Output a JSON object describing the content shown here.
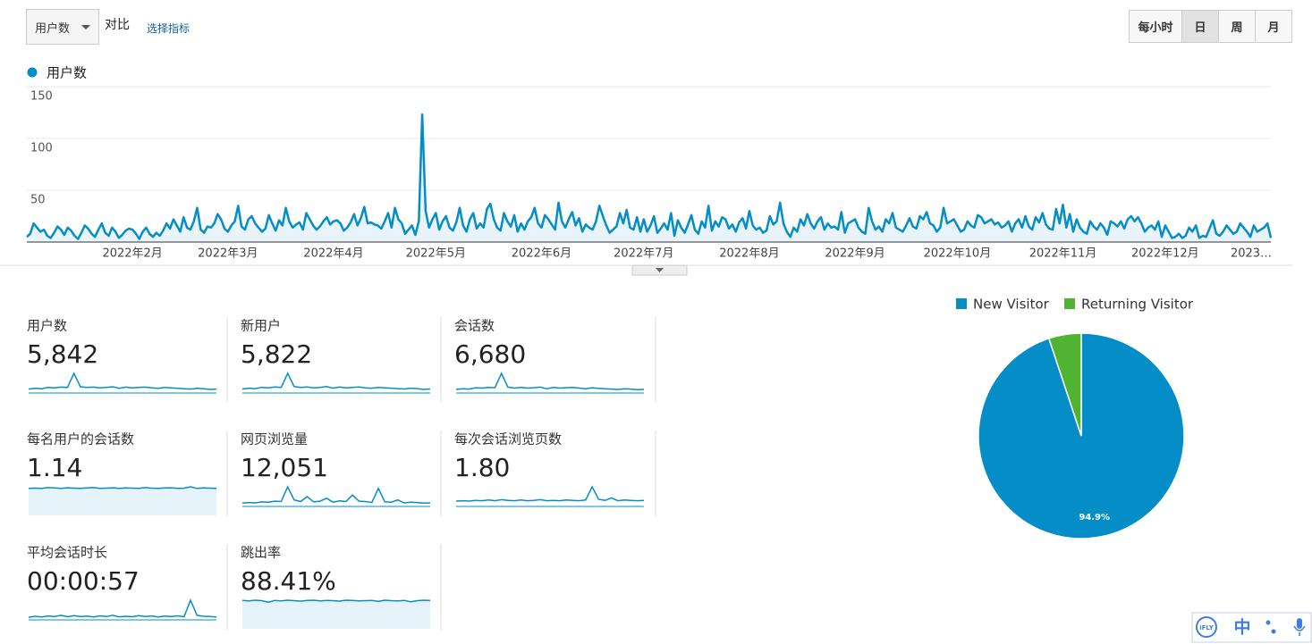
{
  "controls": {
    "metric": "用户数",
    "compare": "对比",
    "select_metric": "选择指标",
    "periods": [
      "每小时",
      "日",
      "周",
      "月"
    ],
    "active_period": 1
  },
  "chart_data": [
    {
      "type": "line",
      "categories": [
        null,
        null,
        null,
        null,
        null,
        null,
        null,
        null,
        null,
        null,
        null,
        null,
        null,
        null,
        null,
        null,
        null,
        null,
        null,
        null,
        null,
        null,
        null,
        null,
        null,
        null,
        null,
        null,
        null,
        null,
        null,
        "2022年2月",
        null,
        null,
        null,
        null,
        null,
        null,
        null,
        null,
        null,
        null,
        null,
        null,
        null,
        null,
        null,
        null,
        null,
        null,
        null,
        null,
        null,
        null,
        null,
        null,
        null,
        null,
        null,
        "2022年3月",
        null,
        null,
        null,
        null,
        null,
        null,
        null,
        null,
        null,
        null,
        null,
        null,
        null,
        null,
        null,
        null,
        null,
        null,
        null,
        null,
        null,
        null,
        null,
        null,
        null,
        null,
        null,
        null,
        null,
        null,
        "2022年4月",
        null,
        null,
        null,
        null,
        null,
        null,
        null,
        null,
        null,
        null,
        null,
        null,
        null,
        null,
        null,
        null,
        null,
        null,
        null,
        null,
        null,
        null,
        null,
        null,
        null,
        null,
        null,
        null,
        null,
        "2022年5月",
        null,
        null,
        null,
        null,
        null,
        null,
        null,
        null,
        null,
        null,
        null,
        null,
        null,
        null,
        null,
        null,
        null,
        null,
        null,
        null,
        null,
        null,
        null,
        null,
        null,
        null,
        null,
        null,
        null,
        null,
        "2022年6月",
        null,
        null,
        null,
        null,
        null,
        null,
        null,
        null,
        null,
        null,
        null,
        null,
        null,
        null,
        null,
        null,
        null,
        null,
        null,
        null,
        null,
        null,
        null,
        null,
        null,
        null,
        null,
        null,
        null,
        "2022年7月",
        null,
        null,
        null,
        null,
        null,
        null,
        null,
        null,
        null,
        null,
        null,
        null,
        null,
        null,
        null,
        null,
        null,
        null,
        null,
        null,
        null,
        null,
        null,
        null,
        null,
        null,
        null,
        null,
        null,
        null,
        "2022年8月",
        null,
        null,
        null,
        null,
        null,
        null,
        null,
        null,
        null,
        null,
        null,
        null,
        null,
        null,
        null,
        null,
        null,
        null,
        null,
        null,
        null,
        null,
        null,
        null,
        null,
        null,
        null,
        null,
        null,
        null,
        "2022年9月",
        null,
        null,
        null,
        null,
        null,
        null,
        null,
        null,
        null,
        null,
        null,
        null,
        null,
        null,
        null,
        null,
        null,
        null,
        null,
        null,
        null,
        null,
        null,
        null,
        null,
        null,
        null,
        null,
        null,
        "2022年10月",
        null,
        null,
        null,
        null,
        null,
        null,
        null,
        null,
        null,
        null,
        null,
        null,
        null,
        null,
        null,
        null,
        null,
        null,
        null,
        null,
        null,
        null,
        null,
        null,
        null,
        null,
        null,
        null,
        null,
        null,
        "2022年11月",
        null,
        null,
        null,
        null,
        null,
        null,
        null,
        null,
        null,
        null,
        null,
        null,
        null,
        null,
        null,
        null,
        null,
        null,
        null,
        null,
        null,
        null,
        null,
        null,
        null,
        null,
        null,
        null,
        null,
        "2022年12月",
        null,
        null,
        null,
        null,
        null,
        null,
        null,
        null,
        null,
        null,
        null,
        null,
        null,
        null,
        null,
        null,
        null,
        null,
        null,
        null,
        null,
        null,
        null,
        null,
        null,
        null,
        null,
        null,
        null,
        null,
        "2023…"
      ],
      "series": [
        {
          "name": "用户数",
          "color": "#058dc7",
          "values": [
            5,
            8,
            18,
            14,
            10,
            12,
            6,
            4,
            9,
            15,
            12,
            7,
            14,
            11,
            6,
            3,
            9,
            16,
            13,
            8,
            5,
            12,
            18,
            9,
            6,
            14,
            10,
            4,
            7,
            11,
            13,
            12,
            8,
            3,
            10,
            14,
            8,
            5,
            9,
            6,
            11,
            18,
            13,
            22,
            16,
            10,
            24,
            14,
            12,
            20,
            33,
            12,
            9,
            15,
            14,
            18,
            27,
            22,
            13,
            10,
            16,
            20,
            35,
            15,
            12,
            22,
            25,
            18,
            14,
            10,
            13,
            26,
            18,
            11,
            21,
            16,
            33,
            20,
            14,
            17,
            19,
            12,
            28,
            22,
            16,
            12,
            15,
            20,
            24,
            17,
            20,
            21,
            18,
            11,
            14,
            19,
            27,
            16,
            23,
            34,
            18,
            19,
            17,
            16,
            13,
            20,
            28,
            14,
            33,
            22,
            18,
            8,
            12,
            16,
            7,
            20,
            123,
            30,
            14,
            22,
            28,
            12,
            20,
            25,
            14,
            11,
            19,
            33,
            16,
            10,
            22,
            28,
            13,
            18,
            14,
            32,
            37,
            22,
            14,
            11,
            28,
            20,
            15,
            26,
            10,
            18,
            12,
            20,
            24,
            33,
            18,
            14,
            26,
            22,
            17,
            12,
            38,
            20,
            14,
            22,
            29,
            16,
            23,
            10,
            17,
            14,
            12,
            20,
            35,
            25,
            16,
            9,
            12,
            15,
            28,
            18,
            31,
            14,
            12,
            24,
            10,
            22,
            10,
            16,
            25,
            9,
            13,
            18,
            12,
            28,
            6,
            21,
            14,
            9,
            17,
            26,
            12,
            8,
            20,
            14,
            35,
            11,
            20,
            15,
            24,
            22,
            13,
            17,
            10,
            19,
            23,
            13,
            30,
            16,
            12,
            14,
            9,
            11,
            25,
            17,
            20,
            38,
            18,
            10,
            5,
            14,
            10,
            22,
            16,
            27,
            18,
            13,
            20,
            24,
            12,
            18,
            14,
            15,
            12,
            29,
            9,
            18,
            20,
            22,
            14,
            10,
            8,
            33,
            20,
            12,
            15,
            10,
            22,
            18,
            28,
            14,
            12,
            10,
            16,
            23,
            15,
            13,
            25,
            22,
            29,
            18,
            16,
            10,
            14,
            33,
            18,
            20,
            22,
            16,
            10,
            12,
            20,
            16,
            14,
            26,
            24,
            18,
            20,
            22,
            17,
            19,
            14,
            16,
            20,
            10,
            18,
            22,
            14,
            25,
            15,
            12,
            24,
            19,
            28,
            17,
            13,
            12,
            32,
            18,
            36,
            14,
            27,
            10,
            22,
            14,
            10,
            8,
            20,
            15,
            12,
            18,
            14,
            7,
            20,
            18,
            15,
            20,
            13,
            22,
            25,
            20,
            24,
            18,
            10,
            14,
            16,
            12,
            20,
            5,
            16,
            10,
            4,
            5,
            8,
            4,
            6,
            14,
            10,
            16,
            4,
            6,
            5,
            13,
            21,
            8,
            6,
            10,
            16,
            12,
            8,
            10,
            18,
            14,
            10,
            5,
            16,
            10,
            12,
            14,
            18,
            4
          ]
        }
      ],
      "ylim": [
        0,
        150
      ],
      "yticks": [
        50,
        100,
        150
      ],
      "grid": true,
      "fill": "#e9f4fa"
    },
    {
      "type": "pie",
      "categories": [
        "New Visitor",
        "Returning Visitor"
      ],
      "values": [
        94.9,
        5.1
      ],
      "value_labels": [
        "94.9%",
        null
      ],
      "colors": [
        "#058dc7",
        "#50b432"
      ],
      "legend": "top"
    }
  ],
  "scorecards": [
    {
      "label": "用户数",
      "value": "5,842",
      "spark": [
        10,
        12,
        11,
        14,
        13,
        15,
        14,
        50,
        16,
        14,
        15,
        13,
        14,
        16,
        12,
        15,
        13,
        14,
        15,
        13,
        12,
        14,
        13,
        12,
        11,
        10,
        12,
        11,
        9,
        10
      ]
    },
    {
      "label": "新用户",
      "value": "5,822",
      "spark": [
        10,
        12,
        11,
        14,
        13,
        15,
        14,
        49,
        16,
        14,
        15,
        13,
        14,
        16,
        12,
        15,
        13,
        14,
        15,
        13,
        12,
        14,
        13,
        12,
        11,
        10,
        12,
        11,
        9,
        10
      ]
    },
    {
      "label": "会话数",
      "value": "6,680",
      "spark": [
        11,
        13,
        12,
        16,
        15,
        17,
        16,
        60,
        18,
        15,
        17,
        15,
        16,
        18,
        13,
        17,
        15,
        16,
        17,
        15,
        13,
        16,
        14,
        13,
        12,
        11,
        13,
        12,
        10,
        11
      ]
    },
    {
      "label": "每名用户的会话数",
      "value": "1.14",
      "spark": [
        1.1,
        1.12,
        1.1,
        1.15,
        1.13,
        1.1,
        1.14,
        1.12,
        1.1,
        1.13,
        1.15,
        1.1,
        1.12,
        1.14,
        1.1,
        1.13,
        1.12,
        1.1,
        1.15,
        1.12,
        1.1,
        1.13,
        1.14,
        1.1,
        1.12,
        1.2,
        1.1,
        1.13,
        1.12,
        1.1
      ],
      "area": true
    },
    {
      "label": "网页浏览量",
      "value": "12,051",
      "spark": [
        10,
        12,
        11,
        14,
        13,
        16,
        15,
        60,
        20,
        15,
        30,
        14,
        16,
        25,
        13,
        17,
        15,
        35,
        16,
        15,
        12,
        55,
        14,
        13,
        20,
        11,
        13,
        12,
        10,
        11
      ]
    },
    {
      "label": "每次会话浏览页数",
      "value": "1.80",
      "spark": [
        1.5,
        1.6,
        1.5,
        1.7,
        1.6,
        1.8,
        1.6,
        1.9,
        1.7,
        1.6,
        1.8,
        1.6,
        1.7,
        1.9,
        1.6,
        1.7,
        1.6,
        1.8,
        1.7,
        1.6,
        1.8,
        5.5,
        2.0,
        1.7,
        2.4,
        1.6,
        1.8,
        1.7,
        1.6,
        1.7
      ]
    },
    {
      "label": "平均会话时长",
      "value": "00:00:57",
      "spark": [
        40,
        55,
        45,
        60,
        50,
        70,
        48,
        65,
        52,
        58,
        44,
        62,
        50,
        70,
        46,
        55,
        48,
        66,
        52,
        60,
        45,
        58,
        50,
        62,
        48,
        300,
        70,
        55,
        50,
        45
      ]
    },
    {
      "label": "跳出率",
      "value": "88.41%",
      "spark": [
        88,
        86,
        89,
        87,
        80,
        88,
        86,
        89,
        87,
        85,
        88,
        89,
        86,
        88,
        87,
        85,
        89,
        88,
        86,
        87,
        88,
        84,
        89,
        87,
        86,
        88,
        82,
        87,
        89,
        88
      ],
      "area": true
    }
  ],
  "ime": {
    "logo": "iFLY",
    "lang": "中"
  }
}
